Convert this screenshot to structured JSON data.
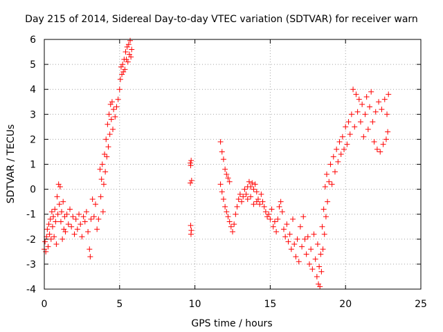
{
  "colors": {
    "series": "#ff0000",
    "grid": "#a0a0a0",
    "axis": "#000000",
    "background": "#ffffff"
  },
  "chart_data": {
    "type": "scatter",
    "title": "Day 215 of 2014, Sidereal Day-to-day VTEC variation (SDTVAR) for receiver warn",
    "xlabel": "GPS time / hours",
    "ylabel": "SDTVAR / TECUs",
    "xlim": [
      0,
      25
    ],
    "ylim": [
      -4,
      6
    ],
    "xticks": [
      0,
      5,
      10,
      15,
      20,
      25
    ],
    "yticks": [
      -4,
      -3,
      -2,
      -1,
      0,
      1,
      2,
      3,
      4,
      5,
      6
    ],
    "grid": true,
    "marker": "plus",
    "series": [
      {
        "name": "SDTVAR",
        "color": "#ff0000",
        "points": [
          [
            0.0,
            -2.4
          ],
          [
            0.05,
            -2.1
          ],
          [
            0.1,
            -2.5
          ],
          [
            0.15,
            -1.9
          ],
          [
            0.2,
            -1.6
          ],
          [
            0.25,
            -2.3
          ],
          [
            0.3,
            -1.4
          ],
          [
            0.35,
            -1.8
          ],
          [
            0.4,
            -1.2
          ],
          [
            0.45,
            -2.0
          ],
          [
            0.5,
            -0.9
          ],
          [
            0.55,
            -1.5
          ],
          [
            0.6,
            -1.1
          ],
          [
            0.65,
            -1.9
          ],
          [
            0.7,
            -0.8
          ],
          [
            0.75,
            -1.3
          ],
          [
            0.8,
            -2.2
          ],
          [
            0.85,
            -0.3
          ],
          [
            0.9,
            -1.0
          ],
          [
            0.95,
            0.2
          ],
          [
            1.0,
            -0.6
          ],
          [
            1.05,
            0.1
          ],
          [
            1.1,
            -1.3
          ],
          [
            1.15,
            -0.9
          ],
          [
            1.2,
            -2.0
          ],
          [
            1.25,
            -0.5
          ],
          [
            1.3,
            -1.6
          ],
          [
            1.35,
            -1.1
          ],
          [
            1.4,
            -1.7
          ],
          [
            1.5,
            -1.0
          ],
          [
            1.6,
            -1.4
          ],
          [
            1.7,
            -0.8
          ],
          [
            1.8,
            -1.5
          ],
          [
            1.9,
            -1.1
          ],
          [
            2.0,
            -1.8
          ],
          [
            2.1,
            -1.2
          ],
          [
            2.2,
            -1.6
          ],
          [
            2.3,
            -1.0
          ],
          [
            2.4,
            -1.4
          ],
          [
            2.5,
            -1.9
          ],
          [
            2.6,
            -1.1
          ],
          [
            2.7,
            -1.3
          ],
          [
            2.8,
            -0.9
          ],
          [
            2.9,
            -1.7
          ],
          [
            3.0,
            -2.4
          ],
          [
            3.05,
            -2.7
          ],
          [
            3.1,
            -1.2
          ],
          [
            3.2,
            -0.4
          ],
          [
            3.3,
            -1.1
          ],
          [
            3.4,
            -0.6
          ],
          [
            3.5,
            -1.6
          ],
          [
            3.6,
            -1.2
          ],
          [
            3.7,
            0.8
          ],
          [
            3.75,
            -0.3
          ],
          [
            3.8,
            0.4
          ],
          [
            3.85,
            1.0
          ],
          [
            3.9,
            -0.9
          ],
          [
            3.95,
            0.2
          ],
          [
            4.0,
            1.4
          ],
          [
            4.05,
            0.7
          ],
          [
            4.1,
            2.0
          ],
          [
            4.15,
            1.3
          ],
          [
            4.2,
            2.6
          ],
          [
            4.25,
            1.7
          ],
          [
            4.3,
            3.0
          ],
          [
            4.35,
            2.2
          ],
          [
            4.4,
            3.4
          ],
          [
            4.45,
            2.8
          ],
          [
            4.5,
            3.5
          ],
          [
            4.55,
            2.4
          ],
          [
            4.6,
            3.2
          ],
          [
            4.7,
            2.9
          ],
          [
            4.8,
            3.3
          ],
          [
            4.9,
            3.6
          ],
          [
            5.0,
            4.0
          ],
          [
            5.05,
            4.4
          ],
          [
            5.1,
            4.9
          ],
          [
            5.15,
            4.6
          ],
          [
            5.2,
            5.0
          ],
          [
            5.25,
            4.7
          ],
          [
            5.3,
            5.2
          ],
          [
            5.35,
            4.8
          ],
          [
            5.4,
            5.5
          ],
          [
            5.45,
            5.2
          ],
          [
            5.5,
            5.7
          ],
          [
            5.55,
            5.1
          ],
          [
            5.6,
            5.8
          ],
          [
            5.65,
            5.4
          ],
          [
            5.7,
            5.95
          ],
          [
            5.75,
            5.3
          ],
          [
            5.8,
            5.6
          ],
          [
            9.7,
            1.05
          ],
          [
            9.75,
            1.15
          ],
          [
            9.72,
            0.95
          ],
          [
            9.78,
            0.35
          ],
          [
            9.7,
            0.25
          ],
          [
            9.72,
            -1.45
          ],
          [
            9.76,
            -1.65
          ],
          [
            9.74,
            -1.8
          ],
          [
            11.7,
            1.9
          ],
          [
            11.8,
            1.5
          ],
          [
            11.9,
            1.2
          ],
          [
            12.0,
            0.8
          ],
          [
            12.1,
            0.6
          ],
          [
            12.2,
            0.45
          ],
          [
            12.3,
            0.3
          ],
          [
            11.7,
            0.2
          ],
          [
            11.8,
            -0.1
          ],
          [
            11.9,
            -0.4
          ],
          [
            12.0,
            -0.7
          ],
          [
            12.1,
            -0.9
          ],
          [
            12.2,
            -1.1
          ],
          [
            12.3,
            -1.3
          ],
          [
            12.4,
            -1.5
          ],
          [
            12.5,
            -1.7
          ],
          [
            12.6,
            -1.4
          ],
          [
            12.7,
            -1.0
          ],
          [
            12.8,
            -0.7
          ],
          [
            12.9,
            -0.4
          ],
          [
            13.0,
            -0.2
          ],
          [
            13.1,
            -0.5
          ],
          [
            13.2,
            -0.3
          ],
          [
            13.3,
            0.0
          ],
          [
            13.4,
            -0.2
          ],
          [
            13.5,
            0.1
          ],
          [
            13.6,
            0.3
          ],
          [
            13.7,
            0.1
          ],
          [
            13.8,
            0.25
          ],
          [
            13.9,
            0.0
          ],
          [
            14.0,
            0.2
          ],
          [
            14.1,
            -0.1
          ],
          [
            14.2,
            -0.4
          ],
          [
            14.3,
            -0.6
          ],
          [
            13.5,
            -0.4
          ],
          [
            13.7,
            -0.3
          ],
          [
            13.9,
            -0.6
          ],
          [
            14.1,
            -0.5
          ],
          [
            14.4,
            -0.2
          ],
          [
            14.5,
            -0.5
          ],
          [
            14.6,
            -0.7
          ],
          [
            14.7,
            -0.9
          ],
          [
            14.8,
            -1.1
          ],
          [
            14.9,
            -1.0
          ],
          [
            15.0,
            -1.2
          ],
          [
            15.1,
            -0.8
          ],
          [
            15.2,
            -1.5
          ],
          [
            15.3,
            -1.3
          ],
          [
            15.4,
            -1.7
          ],
          [
            15.5,
            -1.2
          ],
          [
            15.6,
            -0.7
          ],
          [
            15.7,
            -0.5
          ],
          [
            15.8,
            -0.9
          ],
          [
            15.9,
            -1.6
          ],
          [
            16.0,
            -1.9
          ],
          [
            16.1,
            -1.4
          ],
          [
            16.2,
            -2.1
          ],
          [
            16.3,
            -1.8
          ],
          [
            16.4,
            -2.4
          ],
          [
            16.5,
            -1.2
          ],
          [
            16.6,
            -2.2
          ],
          [
            16.7,
            -2.7
          ],
          [
            16.8,
            -2.0
          ],
          [
            16.9,
            -2.9
          ],
          [
            17.0,
            -1.5
          ],
          [
            17.1,
            -2.3
          ],
          [
            17.2,
            -1.1
          ],
          [
            17.3,
            -2.0
          ],
          [
            17.4,
            -2.6
          ],
          [
            17.5,
            -1.9
          ],
          [
            17.6,
            -3.0
          ],
          [
            17.7,
            -2.4
          ],
          [
            17.8,
            -3.2
          ],
          [
            17.9,
            -1.8
          ],
          [
            18.0,
            -2.8
          ],
          [
            18.1,
            -3.5
          ],
          [
            18.15,
            -2.2
          ],
          [
            18.2,
            -3.8
          ],
          [
            18.25,
            -3.1
          ],
          [
            18.3,
            -3.9
          ],
          [
            18.35,
            -2.6
          ],
          [
            18.4,
            -3.3
          ],
          [
            18.45,
            -1.5
          ],
          [
            18.5,
            -2.4
          ],
          [
            18.55,
            -0.8
          ],
          [
            18.6,
            -1.8
          ],
          [
            18.65,
            0.1
          ],
          [
            18.7,
            -1.1
          ],
          [
            18.75,
            0.6
          ],
          [
            18.8,
            -0.5
          ],
          [
            18.9,
            0.3
          ],
          [
            19.0,
            1.0
          ],
          [
            19.1,
            0.2
          ],
          [
            19.2,
            1.3
          ],
          [
            19.3,
            0.7
          ],
          [
            19.4,
            1.6
          ],
          [
            19.5,
            1.1
          ],
          [
            19.6,
            1.9
          ],
          [
            19.7,
            1.4
          ],
          [
            19.8,
            2.1
          ],
          [
            19.9,
            1.6
          ],
          [
            20.0,
            2.5
          ],
          [
            20.1,
            1.8
          ],
          [
            20.2,
            2.7
          ],
          [
            20.3,
            2.2
          ],
          [
            20.4,
            3.0
          ],
          [
            20.5,
            4.0
          ],
          [
            20.6,
            2.5
          ],
          [
            20.7,
            3.8
          ],
          [
            20.8,
            3.1
          ],
          [
            20.9,
            3.6
          ],
          [
            21.0,
            2.7
          ],
          [
            21.1,
            3.4
          ],
          [
            21.2,
            2.1
          ],
          [
            21.3,
            3.0
          ],
          [
            21.4,
            3.7
          ],
          [
            21.5,
            2.4
          ],
          [
            21.6,
            3.3
          ],
          [
            21.7,
            3.9
          ],
          [
            21.8,
            2.7
          ],
          [
            21.9,
            1.9
          ],
          [
            22.0,
            3.1
          ],
          [
            22.1,
            1.6
          ],
          [
            22.2,
            3.5
          ],
          [
            22.3,
            1.5
          ],
          [
            22.4,
            3.2
          ],
          [
            22.5,
            1.8
          ],
          [
            22.6,
            3.6
          ],
          [
            22.7,
            2.0
          ],
          [
            22.75,
            3.0
          ],
          [
            22.8,
            2.3
          ],
          [
            22.85,
            3.8
          ]
        ]
      }
    ]
  }
}
